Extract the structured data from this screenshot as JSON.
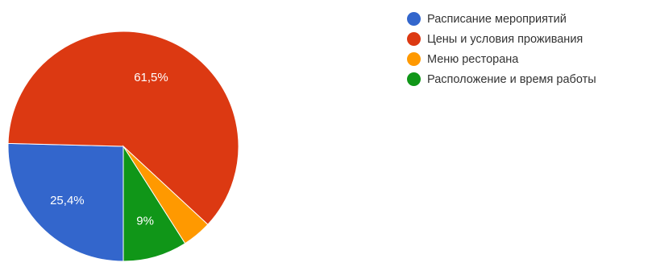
{
  "chart_data": {
    "type": "pie",
    "start_angle_deg": 90,
    "direction": "clockwise",
    "slices": [
      {
        "label": "Расписание мероприятий",
        "value": 25.4,
        "display": "25,4%",
        "color": "#3366cc"
      },
      {
        "label": "Цены и условия проживания",
        "value": 61.5,
        "display": "61,5%",
        "color": "#dc3912"
      },
      {
        "label": "Меню ресторана",
        "value": 4.1,
        "display": "",
        "color": "#ff9900"
      },
      {
        "label": "Расположение и время работы",
        "value": 9,
        "display": "9%",
        "color": "#109618"
      }
    ],
    "legend_position": "right"
  }
}
